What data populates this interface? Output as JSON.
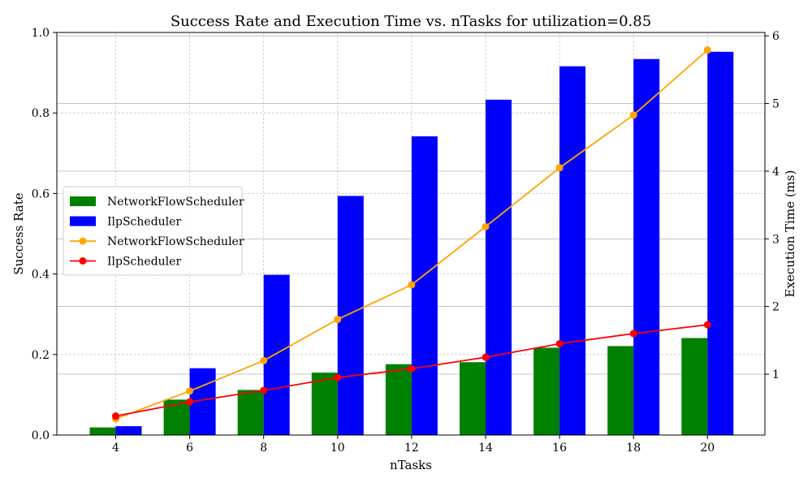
{
  "chart_data": {
    "type": "bar",
    "title": "Success Rate and Execution Time vs. nTasks for utilization=0.85",
    "xlabel": "nTasks",
    "ylabel": "Success Rate",
    "y2label": "Execution Time (ms)",
    "categories": [
      4,
      6,
      8,
      10,
      12,
      14,
      16,
      18,
      20
    ],
    "ylim": [
      0,
      1.0
    ],
    "y2lim": [
      0.1,
      6.05
    ],
    "yticks": [
      0.0,
      0.2,
      0.4,
      0.6,
      0.8,
      1.0
    ],
    "y2ticks": [
      1,
      2,
      3,
      4,
      5,
      6
    ],
    "grid": true,
    "legend_position": "center-left",
    "bar_series": [
      {
        "name": "NetworkFlowScheduler",
        "color": "#008000",
        "values": [
          0.019,
          0.088,
          0.112,
          0.155,
          0.176,
          0.181,
          0.217,
          0.221,
          0.241
        ]
      },
      {
        "name": "IlpScheduler",
        "color": "#0000ff",
        "values": [
          0.022,
          0.166,
          0.398,
          0.594,
          0.742,
          0.833,
          0.916,
          0.934,
          0.952
        ]
      }
    ],
    "line_series": [
      {
        "name": "NetworkFlowScheduler",
        "color": "#ffa500",
        "values": [
          0.34,
          0.75,
          1.2,
          1.81,
          2.32,
          3.18,
          4.05,
          4.83,
          5.79
        ]
      },
      {
        "name": "IlpScheduler",
        "color": "#ff0000",
        "values": [
          0.38,
          0.59,
          0.76,
          0.95,
          1.08,
          1.25,
          1.45,
          1.6,
          1.73
        ]
      }
    ]
  }
}
